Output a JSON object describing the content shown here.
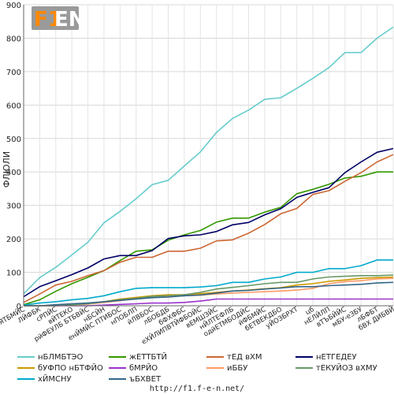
{
  "chart_data": {
    "type": "line",
    "title": "",
    "ylabel": "ФЛЮЛИ",
    "xlabel": "",
    "ylim": [
      0,
      900
    ],
    "yticks": [
      0,
      100,
      200,
      300,
      400,
      500,
      600,
      700,
      800,
      900
    ],
    "grid": true,
    "legend_position": "bottom",
    "categories": [
      "ёФЯТБМЙС",
      "ЛЙФБК",
      "сРПЙС",
      "вЙТЕКО",
      "рйФЕУЛБ БТБВЙС",
      "нБСЙН",
      "енЙМЙС ПТИБОС",
      "нПОБЛП",
      "йЛВБОС",
      "лБОБДБ",
      "бФХФБС",
      "еХЙЛИПВТЙФБОЙС",
      "вЕМШЗЙС",
      "нЙЛТЕФЛБ",
      "одйЕТМБОДЙС",
      "йФБМЙС",
      "бЕТВЕКДБО",
      "уЙОЗБРХТ",
      "цб",
      "нЕЛЙЛП",
      "вТЪБЙЙС",
      "мБУ-еЗБУ",
      "лБФБТ",
      "бВХ ДИБВЙ"
    ],
    "series": [
      {
        "name": "нБЛМБТЭО",
        "color": "#66cccc",
        "values": [
          36,
          84,
          115,
          152,
          190,
          248,
          282,
          320,
          362,
          375,
          418,
          460,
          518,
          560,
          585,
          617,
          622,
          650,
          680,
          712,
          757,
          757,
          800,
          833
        ]
      },
      {
        "name": "жЕТТБТЙ",
        "color": "#339900",
        "values": [
          3,
          18,
          43,
          66,
          85,
          105,
          135,
          163,
          167,
          196,
          212,
          225,
          250,
          262,
          262,
          280,
          294,
          335,
          348,
          363,
          382,
          387,
          400,
          400
        ]
      },
      {
        "name": "тЕД вХМ",
        "color": "#cc6633",
        "values": [
          10,
          35,
          62,
          73,
          90,
          105,
          130,
          145,
          145,
          163,
          163,
          172,
          194,
          197,
          217,
          243,
          275,
          291,
          333,
          344,
          372,
          398,
          430,
          452
        ]
      },
      {
        "name": "нЕТГЕДЕУ",
        "color": "#000066",
        "values": [
          27,
          57,
          75,
          93,
          113,
          140,
          150,
          150,
          165,
          201,
          209,
          212,
          222,
          242,
          249,
          272,
          290,
          324,
          339,
          353,
          398,
          430,
          459,
          470
        ]
      },
      {
        "name": "бУФПО нБТФЙО",
        "color": "#cc9900",
        "values": [
          0,
          0,
          0,
          3,
          6,
          12,
          20,
          25,
          30,
          33,
          33,
          36,
          40,
          44,
          47,
          51,
          54,
          62,
          66,
          73,
          77,
          82,
          84,
          86
        ]
      },
      {
        "name": "бМРЙО",
        "color": "#9933cc",
        "values": [
          0,
          0,
          0,
          0,
          0,
          2,
          4,
          6,
          8,
          8,
          10,
          14,
          20,
          20,
          20,
          20,
          20,
          20,
          20,
          20,
          20,
          20,
          20,
          20
        ]
      },
      {
        "name": "иББУ",
        "color": "#ff9966",
        "values": [
          0,
          0,
          0,
          3,
          5,
          10,
          15,
          22,
          26,
          28,
          30,
          32,
          35,
          38,
          40,
          42,
          44,
          47,
          52,
          66,
          72,
          75,
          80,
          82
        ]
      },
      {
        "name": "тЕКУЙОЗ вХМУ",
        "color": "#669966",
        "values": [
          0,
          0,
          0,
          3,
          6,
          12,
          18,
          22,
          28,
          30,
          33,
          40,
          50,
          55,
          60,
          66,
          70,
          70,
          80,
          86,
          88,
          90,
          90,
          92
        ]
      },
      {
        "name": "хЙМСНУ",
        "color": "#00aacc",
        "values": [
          2,
          8,
          12,
          18,
          22,
          30,
          42,
          52,
          54,
          54,
          54,
          56,
          60,
          70,
          70,
          80,
          86,
          100,
          100,
          111,
          111,
          120,
          137,
          137
        ]
      },
      {
        "name": "ъБХВЕТ",
        "color": "#336688",
        "values": [
          0,
          0,
          3,
          6,
          8,
          12,
          16,
          20,
          24,
          26,
          30,
          32,
          38,
          44,
          46,
          50,
          53,
          57,
          57,
          60,
          62,
          64,
          68,
          70
        ]
      }
    ]
  },
  "logo": {
    "text_f1": "F1",
    "text_en": "EN"
  },
  "footer": {
    "url": "http://f1.f-e-n.net/"
  }
}
